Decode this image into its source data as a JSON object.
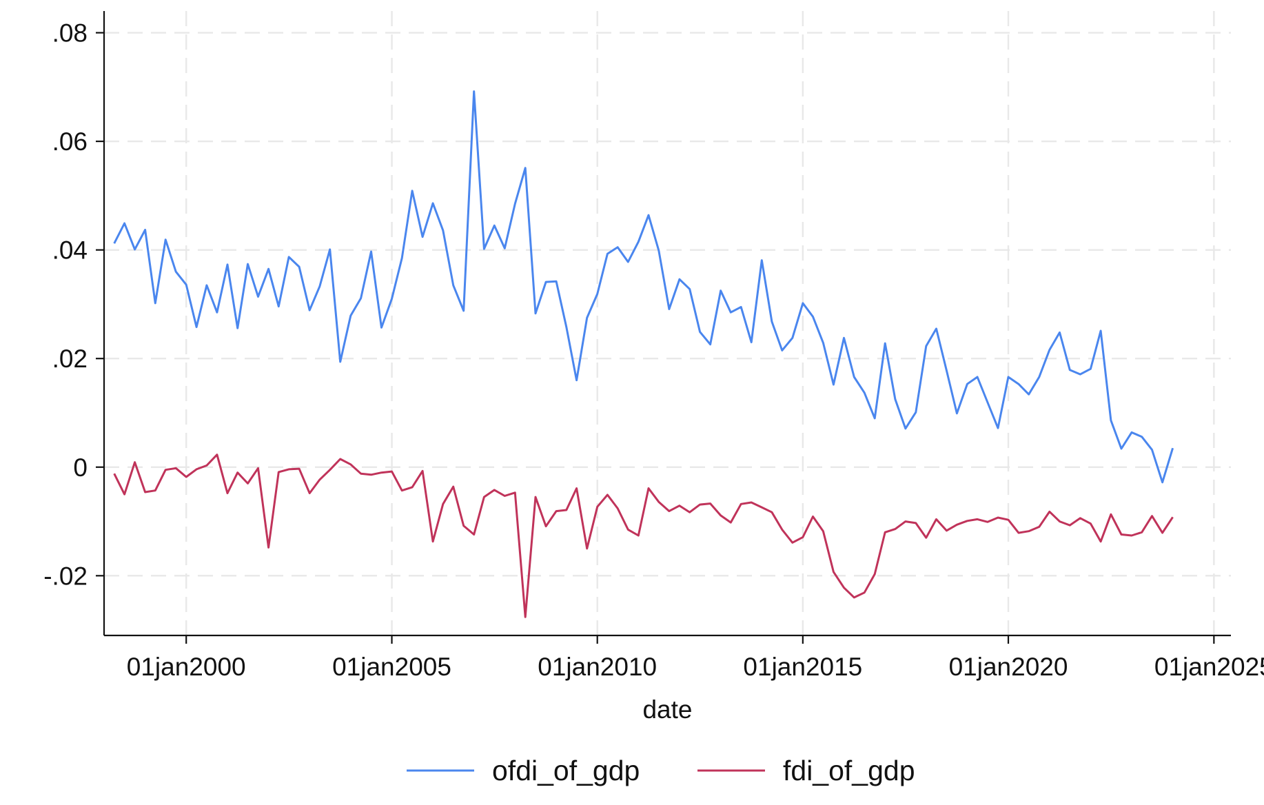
{
  "chart_data": {
    "type": "line",
    "xlabel": "date",
    "ylabel": "",
    "x_axis": {
      "kind": "date",
      "range": [
        "1998-01-01",
        "2025-06-01"
      ],
      "ticks": [
        {
          "date": "2000-01-01",
          "label": "01jan2000"
        },
        {
          "date": "2005-01-01",
          "label": "01jan2005"
        },
        {
          "date": "2010-01-01",
          "label": "01jan2010"
        },
        {
          "date": "2015-01-01",
          "label": "01jan2015"
        },
        {
          "date": "2020-01-01",
          "label": "01jan2020"
        },
        {
          "date": "2025-01-01",
          "label": "01jan2025"
        }
      ]
    },
    "y_axis": {
      "range": [
        -0.031,
        0.084
      ],
      "ticks": [
        {
          "value": -0.02,
          "label": "-.02"
        },
        {
          "value": 0,
          "label": "0"
        },
        {
          "value": 0.02,
          "label": ".02"
        },
        {
          "value": 0.04,
          "label": ".04"
        },
        {
          "value": 0.06,
          "label": ".06"
        },
        {
          "value": 0.08,
          "label": ".08"
        }
      ]
    },
    "grid": true,
    "legend_position": "bottom",
    "x": [
      "1998-04-01",
      "1998-07-01",
      "1998-10-01",
      "1999-01-01",
      "1999-04-01",
      "1999-07-01",
      "1999-10-01",
      "2000-01-01",
      "2000-04-01",
      "2000-07-01",
      "2000-10-01",
      "2001-01-01",
      "2001-04-01",
      "2001-07-01",
      "2001-10-01",
      "2002-01-01",
      "2002-04-01",
      "2002-07-01",
      "2002-10-01",
      "2003-01-01",
      "2003-04-01",
      "2003-07-01",
      "2003-10-01",
      "2004-01-01",
      "2004-04-01",
      "2004-07-01",
      "2004-10-01",
      "2005-01-01",
      "2005-04-01",
      "2005-07-01",
      "2005-10-01",
      "2006-01-01",
      "2006-04-01",
      "2006-07-01",
      "2006-10-01",
      "2007-01-01",
      "2007-04-01",
      "2007-07-01",
      "2007-10-01",
      "2008-01-01",
      "2008-04-01",
      "2008-07-01",
      "2008-10-01",
      "2009-01-01",
      "2009-04-01",
      "2009-07-01",
      "2009-10-01",
      "2010-01-01",
      "2010-04-01",
      "2010-07-01",
      "2010-10-01",
      "2011-01-01",
      "2011-04-01",
      "2011-07-01",
      "2011-10-01",
      "2012-01-01",
      "2012-04-01",
      "2012-07-01",
      "2012-10-01",
      "2013-01-01",
      "2013-04-01",
      "2013-07-01",
      "2013-10-01",
      "2014-01-01",
      "2014-04-01",
      "2014-07-01",
      "2014-10-01",
      "2015-01-01",
      "2015-04-01",
      "2015-07-01",
      "2015-10-01",
      "2016-01-01",
      "2016-04-01",
      "2016-07-01",
      "2016-10-01",
      "2017-01-01",
      "2017-04-01",
      "2017-07-01",
      "2017-10-01",
      "2018-01-01",
      "2018-04-01",
      "2018-07-01",
      "2018-10-01",
      "2019-01-01",
      "2019-04-01",
      "2019-07-01",
      "2019-10-01",
      "2020-01-01",
      "2020-04-01",
      "2020-07-01",
      "2020-10-01",
      "2021-01-01",
      "2021-04-01",
      "2021-07-01",
      "2021-10-01",
      "2022-01-01",
      "2022-04-01",
      "2022-07-01",
      "2022-10-01",
      "2023-01-01",
      "2023-04-01",
      "2023-07-01",
      "2023-10-01",
      "2024-01-01"
    ],
    "series": [
      {
        "name": "ofdi_of_gdp",
        "color": "#4a86ee",
        "values": [
          0.0412,
          0.0449,
          0.0401,
          0.0437,
          0.0302,
          0.0419,
          0.036,
          0.0336,
          0.0258,
          0.0335,
          0.0285,
          0.0373,
          0.0256,
          0.0374,
          0.0314,
          0.0365,
          0.0296,
          0.0387,
          0.0369,
          0.0289,
          0.0333,
          0.0401,
          0.0194,
          0.0279,
          0.0311,
          0.0397,
          0.0257,
          0.031,
          0.0385,
          0.0509,
          0.0424,
          0.0486,
          0.0436,
          0.0335,
          0.0288,
          0.0692,
          0.0402,
          0.0445,
          0.0403,
          0.0485,
          0.0551,
          0.0283,
          0.0341,
          0.0342,
          0.0258,
          0.016,
          0.0275,
          0.0319,
          0.0393,
          0.0405,
          0.0378,
          0.0415,
          0.0464,
          0.0399,
          0.0291,
          0.0346,
          0.0328,
          0.0249,
          0.0226,
          0.0325,
          0.0285,
          0.0295,
          0.023,
          0.0381,
          0.0268,
          0.0215,
          0.0238,
          0.0302,
          0.0277,
          0.0229,
          0.0152,
          0.0238,
          0.0166,
          0.0137,
          0.009,
          0.0228,
          0.0125,
          0.0071,
          0.0101,
          0.0223,
          0.0255,
          0.0178,
          0.0099,
          0.0153,
          0.0166,
          0.0119,
          0.0072,
          0.0166,
          0.0153,
          0.0134,
          0.0166,
          0.0216,
          0.0248,
          0.0179,
          0.0171,
          0.0181,
          0.0251,
          0.0086,
          0.0034,
          0.0064,
          0.0056,
          0.0032,
          -0.0028,
          0.0035
        ]
      },
      {
        "name": "fdi_of_gdp",
        "color": "#c0335a",
        "values": [
          -0.0012,
          -0.005,
          0.0009,
          -0.0046,
          -0.0043,
          -0.0005,
          -0.0002,
          -0.0018,
          -0.0004,
          0.0003,
          0.0023,
          -0.0048,
          -0.001,
          -0.003,
          -0.0002,
          -0.0148,
          -0.0009,
          -0.0004,
          -0.0003,
          -0.0048,
          -0.0023,
          -0.0005,
          0.0015,
          0.0005,
          -0.0012,
          -0.0014,
          -0.001,
          -0.0008,
          -0.0043,
          -0.0037,
          -0.0007,
          -0.0137,
          -0.0068,
          -0.0036,
          -0.0108,
          -0.0124,
          -0.0055,
          -0.0042,
          -0.0053,
          -0.0047,
          -0.0276,
          -0.0055,
          -0.0109,
          -0.0081,
          -0.0079,
          -0.0039,
          -0.015,
          -0.0073,
          -0.0051,
          -0.0076,
          -0.0115,
          -0.0126,
          -0.0039,
          -0.0064,
          -0.0081,
          -0.0071,
          -0.0083,
          -0.0069,
          -0.0067,
          -0.0089,
          -0.0102,
          -0.0068,
          -0.0065,
          -0.0074,
          -0.0083,
          -0.0115,
          -0.0139,
          -0.0129,
          -0.0091,
          -0.0118,
          -0.0193,
          -0.0222,
          -0.024,
          -0.0231,
          -0.0197,
          -0.012,
          -0.0114,
          -0.01,
          -0.0103,
          -0.013,
          -0.0096,
          -0.0117,
          -0.0106,
          -0.0099,
          -0.0096,
          -0.0101,
          -0.0093,
          -0.0097,
          -0.0121,
          -0.0118,
          -0.011,
          -0.0082,
          -0.01,
          -0.0107,
          -0.0094,
          -0.0104,
          -0.0137,
          -0.0087,
          -0.0124,
          -0.0126,
          -0.012,
          -0.009,
          -0.0121,
          -0.0092
        ]
      }
    ]
  }
}
